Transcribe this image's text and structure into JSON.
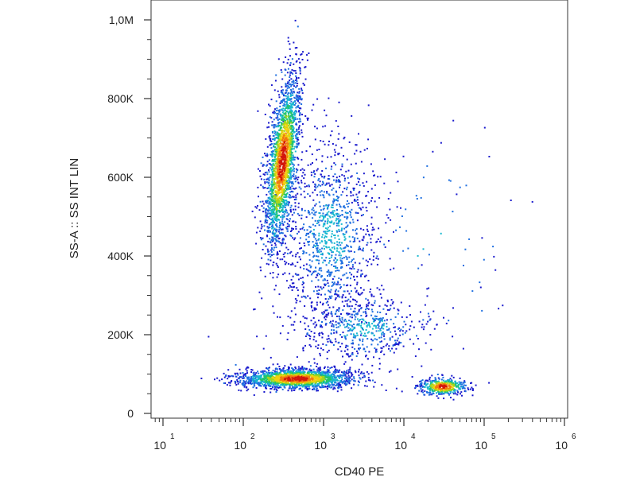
{
  "chart_data": {
    "type": "scatter",
    "subtype": "flow-cytometry-density",
    "xlabel": "CD40 PE",
    "ylabel": "SS-A :: SS INT LIN",
    "x_scale": "log",
    "xlim": [
      10,
      1000000
    ],
    "x_ticks": [
      {
        "base": "10",
        "exp": "1",
        "value": 10
      },
      {
        "base": "10",
        "exp": "2",
        "value": 100
      },
      {
        "base": "10",
        "exp": "3",
        "value": 1000
      },
      {
        "base": "10",
        "exp": "4",
        "value": 10000
      },
      {
        "base": "10",
        "exp": "5",
        "value": 100000
      },
      {
        "base": "10",
        "exp": "6",
        "value": 1000000
      }
    ],
    "y_scale": "linear",
    "ylim": [
      0,
      1000000
    ],
    "y_ticks": [
      {
        "label": "0",
        "value": 0
      },
      {
        "label": "200K",
        "value": 200000
      },
      {
        "label": "400K",
        "value": 400000
      },
      {
        "label": "600K",
        "value": 600000
      },
      {
        "label": "800K",
        "value": 800000
      },
      {
        "label": "1,0M",
        "value": 1000000
      }
    ],
    "populations": [
      {
        "x_center": 300,
        "x_spread_log": 0.09,
        "y_center": 640000,
        "y_spread": 220000,
        "tilt": 0.12,
        "count": 2200,
        "peak": "dense"
      },
      {
        "x_center": 450,
        "x_spread_log": 0.35,
        "y_center": 90000,
        "y_spread": 25000,
        "tilt": 0,
        "count": 1800,
        "peak": "dense"
      },
      {
        "x_center": 1200,
        "x_spread_log": 0.3,
        "y_center": 450000,
        "y_spread": 250000,
        "tilt": 0,
        "count": 1100,
        "peak": "sparse"
      },
      {
        "x_center": 3000,
        "x_spread_log": 0.4,
        "y_center": 220000,
        "y_spread": 80000,
        "tilt": 0,
        "count": 500,
        "peak": "sparse"
      },
      {
        "x_center": 30000,
        "x_spread_log": 0.15,
        "y_center": 70000,
        "y_spread": 22000,
        "tilt": 0,
        "count": 450,
        "peak": "dense"
      },
      {
        "x_center": 25000,
        "x_spread_log": 0.5,
        "y_center": 450000,
        "y_spread": 280000,
        "tilt": 0,
        "count": 60,
        "peak": "sparse"
      }
    ],
    "density_colors": [
      "#1a1acd",
      "#1e6fe0",
      "#18b8d0",
      "#22c46a",
      "#a6d51a",
      "#f2d10f",
      "#f27a10",
      "#d2160c"
    ],
    "grid": false,
    "legend": "none"
  }
}
